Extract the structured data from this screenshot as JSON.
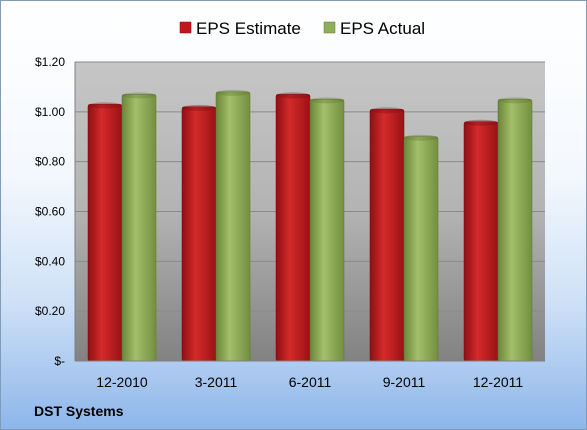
{
  "chart_data": {
    "type": "bar",
    "categories": [
      "12-2010",
      "3-2011",
      "6-2011",
      "9-2011",
      "12-2011"
    ],
    "series": [
      {
        "name": "EPS Estimate",
        "values": [
          1.03,
          1.02,
          1.07,
          1.01,
          0.96
        ],
        "color": "#c0161c"
      },
      {
        "name": "EPS Actual",
        "values": [
          1.07,
          1.08,
          1.05,
          0.9,
          1.05
        ],
        "color": "#8fae5a"
      }
    ],
    "yticks": [
      "$-",
      "$0.20",
      "$0.40",
      "$0.60",
      "$0.80",
      "$1.00",
      "$1.20"
    ],
    "ylim": [
      0,
      1.2
    ],
    "grid": true,
    "legend": "top"
  },
  "footer": {
    "company": "DST Systems"
  }
}
